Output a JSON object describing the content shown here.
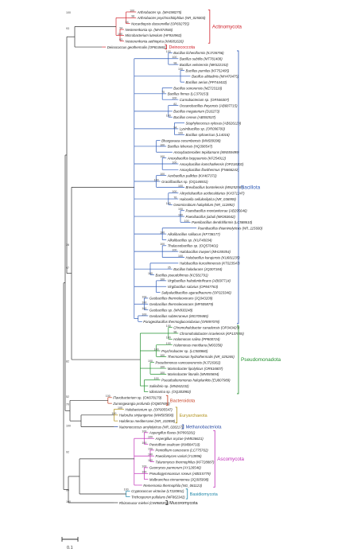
{
  "phyla": [
    {
      "id": "actino",
      "label": "Actinomycota",
      "color": "#d0212a",
      "size": 6.2
    },
    {
      "id": "deino",
      "label": "Deinococcota",
      "color": "#d0212a",
      "size": 5.4
    },
    {
      "id": "bacillota",
      "label": "Bacillota",
      "color": "#2e5bb8",
      "size": 6.4
    },
    {
      "id": "pseudo",
      "label": "Pseudomonadota",
      "color": "#23902f",
      "size": 6.4
    },
    {
      "id": "bactero",
      "label": "Bacteroidota",
      "color": "#c43a1c",
      "size": 5.6
    },
    {
      "id": "eury",
      "label": "Euryarchaeota",
      "color": "#b0901a",
      "size": 5.4
    },
    {
      "id": "methano",
      "label": "Methanobacteriota",
      "color": "#1a3f9e",
      "size": 5.4
    },
    {
      "id": "asco",
      "label": "Ascomycota",
      "color": "#c02fb8",
      "size": 6.2
    },
    {
      "id": "basidio",
      "label": "Basidiomycota",
      "color": "#1e86a8",
      "size": 5.4
    },
    {
      "id": "mucoro",
      "label": "Mucoromycota",
      "color": "#222222",
      "size": 5.4
    }
  ],
  "scale_label": "0.1",
  "taxa": [
    {
      "name": "Arthrobacter sp. (MH198275)",
      "p": "actino",
      "d": 12,
      "bs": "100"
    },
    {
      "name": "Arthrobacter psychrochitiphilus (NR_025003)",
      "p": "actino",
      "d": 12,
      "bs": "98"
    },
    {
      "name": "Nocardiopsis dassonvillei (OP692755)",
      "p": "actino",
      "d": 11,
      "bs": "54"
    },
    {
      "name": "Nesterenkonia sp. (MH474546)",
      "p": "actino",
      "d": 10,
      "bs": "34"
    },
    {
      "name": "Microbacterium luteolum (HF934962)",
      "p": "actino",
      "d": 10,
      "bs": "100"
    },
    {
      "name": "Nesterenkonia aethiopica (KM081626)",
      "p": "actino",
      "d": 10,
      "bs": "93"
    },
    {
      "name": "Deinococcus geothermalis (OP810662)",
      "p": "deino",
      "d": 7,
      "bs": ""
    },
    {
      "name": "Bacillus licheniformis (KJ726756)",
      "p": "bacillota",
      "d": 18,
      "bs": "100"
    },
    {
      "name": "Bacillus subtilis (MT781408)",
      "p": "bacillota",
      "d": 19,
      "bs": "100"
    },
    {
      "name": "Bacillus velezensis (MK522153)",
      "p": "bacillota",
      "d": 19,
      "bs": "98"
    },
    {
      "name": "Bacillus pumilus (KF752495)",
      "p": "bacillota",
      "d": 20,
      "bs": "100"
    },
    {
      "name": "Bacillus altitudinis (MH470475)",
      "p": "bacillota",
      "d": 21,
      "bs": ""
    },
    {
      "name": "Bacillus aerius (PP744432)",
      "p": "bacillota",
      "d": 20,
      "bs": ""
    },
    {
      "name": "Bacillus sonorensis (MZ723116)",
      "p": "bacillota",
      "d": 18,
      "bs": ""
    },
    {
      "name": "Bacillus firmus (LC379153)",
      "p": "bacillota",
      "d": 17,
      "bs": "70"
    },
    {
      "name": "Carnobacterium sp. (OR546307)",
      "p": "bacillota",
      "d": 19,
      "bs": "100"
    },
    {
      "name": "Oceanobacillus iheyensis (AB687715)",
      "p": "bacillota",
      "d": 19,
      "bs": "82"
    },
    {
      "name": "Bacillus megaterium (D16273)",
      "p": "bacillota",
      "d": 18,
      "bs": ""
    },
    {
      "name": "Bacillus cereus (AB592537)",
      "p": "bacillota",
      "d": 18,
      "bs": "100"
    },
    {
      "name": "Staphylococcus xylosus (AB626129)",
      "p": "bacillota",
      "d": 20,
      "bs": ""
    },
    {
      "name": "Lysinibacillus sp. (OR096700)",
      "p": "bacillota",
      "d": 19,
      "bs": "94"
    },
    {
      "name": "Bacillus sphaericus (L14016)",
      "p": "bacillota",
      "d": 20,
      "bs": "100"
    },
    {
      "name": "Bhargavaea cecembensis (MN589398)",
      "p": "bacillota",
      "d": 16,
      "bs": ""
    },
    {
      "name": "Bacillus lehensis (HQ398547)",
      "p": "bacillota",
      "d": 17,
      "bs": "100"
    },
    {
      "name": "Anoxybacteroides tepidamans (MN559499)",
      "p": "bacillota",
      "d": 18,
      "bs": ""
    },
    {
      "name": "Anoxybacillus beppuensis (KF254912)",
      "p": "bacillota",
      "d": 17,
      "bs": "100"
    },
    {
      "name": "Anoxybacillus kamchatkensis (OP218102)",
      "p": "bacillota",
      "d": 19,
      "bs": "100"
    },
    {
      "name": "Anoxybacillus flavithermus (FN666242)",
      "p": "bacillota",
      "d": 19,
      "bs": ""
    },
    {
      "name": "Aeribacillus pallidus (KX467372)",
      "p": "bacillota",
      "d": 17,
      "bs": "100"
    },
    {
      "name": "Gracilibacillus sp. (OQ146931)",
      "p": "bacillota",
      "d": 16,
      "bs": "100"
    },
    {
      "name": "Brevibacillus borstelensis (MN252567)",
      "p": "bacillota",
      "d": 20,
      "bs": "100"
    },
    {
      "name": "Alicyclobacillus acidocaldarius (KX371247)",
      "p": "bacillota",
      "d": 19,
      "bs": "100"
    },
    {
      "name": "Halocella cellulosilytica (NR_036959)",
      "p": "bacillota",
      "d": 19,
      "bs": "76"
    },
    {
      "name": "Geomicrobium halophilum (NR_112892)",
      "p": "bacillota",
      "d": 18,
      "bs": "100"
    },
    {
      "name": "Paenibacillus montaniterrae (AB295646)",
      "p": "bacillota",
      "d": 20,
      "bs": "100"
    },
    {
      "name": "Paenibacillus jiabuli (MK063642)",
      "p": "bacillota",
      "d": 20,
      "bs": "100"
    },
    {
      "name": "Paenibacillus dendritiformis (LC588610)",
      "p": "bacillota",
      "d": 21,
      "bs": "100"
    },
    {
      "name": "Paenibacillus thiaminolyticus (NR_115600)",
      "p": "bacillota",
      "d": 22,
      "bs": ""
    },
    {
      "name": "Alkalibacillus salilacus (KF738177)",
      "p": "bacillota",
      "d": 17,
      "bs": "100"
    },
    {
      "name": "Alkalibacillus sp. (KU740034)",
      "p": "bacillota",
      "d": 17,
      "bs": ""
    },
    {
      "name": "Thalassobacillus sp. (OQ570401)",
      "p": "bacillota",
      "d": 17,
      "bs": "100"
    },
    {
      "name": "Halobacillus trueperi (MH159354)",
      "p": "bacillota",
      "d": 19,
      "bs": "100"
    },
    {
      "name": "Halobacillus karajensis (KU681235)",
      "p": "bacillota",
      "d": 20,
      "bs": "100"
    },
    {
      "name": "Halobacillus kuroshimensis (KT023547)",
      "p": "bacillota",
      "d": 19,
      "bs": ""
    },
    {
      "name": "Bacillus halodurans (JQ307184)",
      "p": "bacillota",
      "d": 18,
      "bs": "35"
    },
    {
      "name": "Bacillus pseudofirmus (KC581791)",
      "p": "bacillota",
      "d": 15,
      "bs": "100"
    },
    {
      "name": "Virgibacillus halodenitrificans (AB697714)",
      "p": "bacillota",
      "d": 17,
      "bs": "100"
    },
    {
      "name": "Virgibacillus salarius (OP847763)",
      "p": "bacillota",
      "d": 17,
      "bs": ""
    },
    {
      "name": "Salipaludibacillus agaradhaerens (OP323346)",
      "p": "bacillota",
      "d": 16,
      "bs": ""
    },
    {
      "name": "Geobacillus thermoleovorans (JQ343209)",
      "p": "bacillota",
      "d": 14,
      "bs": "100"
    },
    {
      "name": "Geobacillus thermoleovorans (MF505879)",
      "p": "bacillota",
      "d": 14,
      "bs": "100"
    },
    {
      "name": "Geobacillus sp. (MN930248)",
      "p": "bacillota",
      "d": 14,
      "bs": "100"
    },
    {
      "name": "Geobacillus subterraneus (MG709465)",
      "p": "bacillota",
      "d": 14,
      "bs": "100"
    },
    {
      "name": "Parageobacillus thermoglucosidasius (OR897078)",
      "p": "bacillota",
      "d": 13,
      "bs": ""
    },
    {
      "name": "Chromohalobacter canadensis (OP343425)",
      "p": "pseudo",
      "d": 18,
      "bs": "100"
    },
    {
      "name": "Chromohalobacter israelensis (KP137855)",
      "p": "pseudo",
      "d": 19,
      "bs": "98"
    },
    {
      "name": "Halomonas salina (PP800724)",
      "p": "pseudo",
      "d": 18,
      "bs": "100"
    },
    {
      "name": "Halomonas meridiana (M93358)",
      "p": "pseudo",
      "d": 18,
      "bs": "100"
    },
    {
      "name": "Psychrobacter sp. (LC500860)",
      "p": "pseudo",
      "d": 16,
      "bs": "100"
    },
    {
      "name": "Thermomonas hydrothermalis (NR_025265)",
      "p": "pseudo",
      "d": 17,
      "bs": "100"
    },
    {
      "name": "Pseudomonas vancouverensis (KJ726362)",
      "p": "pseudo",
      "d": 15,
      "bs": "100"
    },
    {
      "name": "Marinobacter lipolyticus (OR616807)",
      "p": "pseudo",
      "d": 17,
      "bs": "100"
    },
    {
      "name": "Marinobacter litoralis (MN555694)",
      "p": "pseudo",
      "d": 17,
      "bs": "100"
    },
    {
      "name": "Pseudoalteromonas haloplanktis (EU807989)",
      "p": "pseudo",
      "d": 16,
      "bs": "100"
    },
    {
      "name": "Salinibrio sp. (MN262232)",
      "p": "pseudo",
      "d": 14,
      "bs": ""
    },
    {
      "name": "Idiomarina sp. (OQ303983)",
      "p": "pseudo",
      "d": 14,
      "bs": ""
    },
    {
      "name": "Flavobacterium sp. (OK678179)",
      "p": "bactero",
      "d": 8,
      "bs": "100"
    },
    {
      "name": "Zunongwangia profunda (OQ807694)",
      "p": "bactero",
      "d": 8,
      "bs": ""
    },
    {
      "name": "Halobacterium sp. (OP005547)",
      "p": "eury",
      "d": 10,
      "bs": "100"
    },
    {
      "name": "Haloruba sinjiangense (MW585890)",
      "p": "eury",
      "d": 9,
      "bs": "100"
    },
    {
      "name": "Haloferax mediterranei (NR_102898)",
      "p": "eury",
      "d": 9,
      "bs": ""
    },
    {
      "name": "Natronococcus amylolyticus (NR_028217)",
      "p": "methano",
      "d": 9,
      "bs": ""
    },
    {
      "name": "Aspergillus flavus (KP993281)",
      "p": "asco",
      "d": 14,
      "bs": "100"
    },
    {
      "name": "Aspergillus oryzae (HM536621)",
      "p": "asco",
      "d": 15,
      "bs": "100"
    },
    {
      "name": "Penicillium oxalicum (KM084710)",
      "p": "asco",
      "d": 14,
      "bs": "100"
    },
    {
      "name": "Penicillium canescens (LC775762)",
      "p": "asco",
      "d": 15,
      "bs": "100"
    },
    {
      "name": "Paecilomyces varioti (Y13996)",
      "p": "asco",
      "d": 15,
      "bs": "100"
    },
    {
      "name": "Talaromyces thermophilus (KF728887)",
      "p": "asco",
      "d": 15,
      "bs": "100"
    },
    {
      "name": "Geomyces pannorum (AY126546)",
      "p": "asco",
      "d": 14,
      "bs": "100"
    },
    {
      "name": "Pseudogymnoascus roseus (AB015779)",
      "p": "asco",
      "d": 14,
      "bs": "100"
    },
    {
      "name": "Malbranchea cinnamomea (JQ305098)",
      "p": "asco",
      "d": 14,
      "bs": ""
    },
    {
      "name": "Remersonia thermophila (NG_061123)",
      "p": "asco",
      "d": 13,
      "bs": ""
    },
    {
      "name": "Cryptococcus victoriae (LT220851)",
      "p": "basidio",
      "d": 11,
      "bs": "100"
    },
    {
      "name": "Trichosporon pullulans (MF862342)",
      "p": "basidio",
      "d": 11,
      "bs": ""
    },
    {
      "name": "Rhizomucor miehei (OW988351)",
      "p": "mucoro",
      "d": 9,
      "bs": ""
    }
  ],
  "internal_supports": [
    {
      "value": "100",
      "row": 0.3
    },
    {
      "value": "93",
      "row": 3.0
    },
    {
      "value": "28",
      "row": 40.0
    },
    {
      "value": "97",
      "row": 44.0
    },
    {
      "value": "82",
      "row": 60.0
    },
    {
      "value": "52",
      "row": 66.0
    },
    {
      "value": "70",
      "row": 67.3
    },
    {
      "value": "100",
      "row": 71.0
    },
    {
      "value": "92",
      "row": 75.5
    },
    {
      "value": "99",
      "row": 82.0
    },
    {
      "value": "100",
      "row": 85.3
    }
  ]
}
